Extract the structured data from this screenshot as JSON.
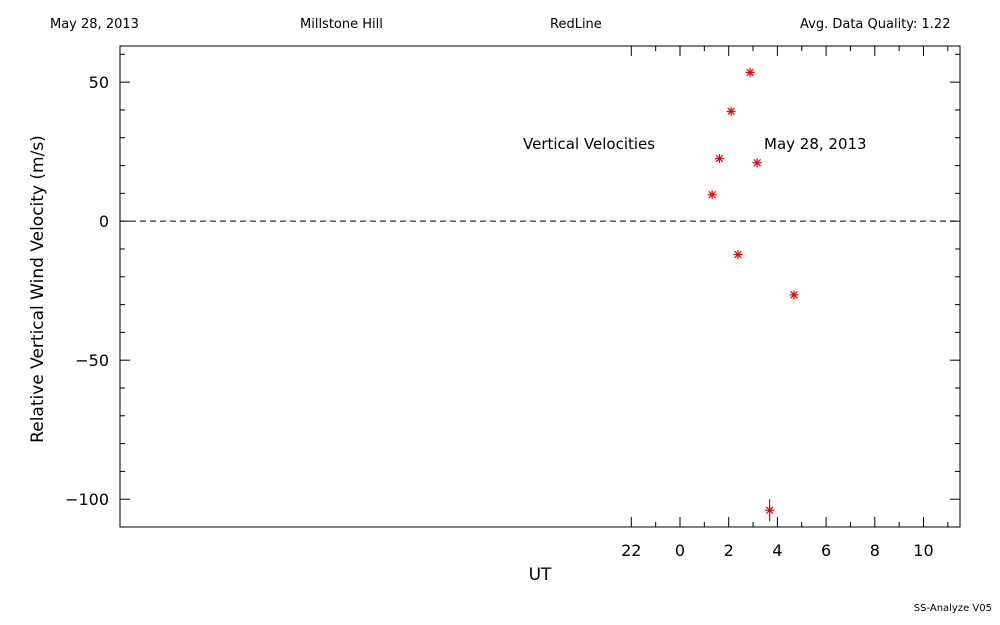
{
  "header": {
    "date": "May 28, 2013",
    "site": "Millstone Hill",
    "instrument": "RedLine",
    "quality": "Avg. Data Quality: 1.22"
  },
  "footer": {
    "version": "SS-Analyze V05"
  },
  "chart_data": {
    "type": "scatter",
    "title": "Vertical Velocities",
    "date_label": "May 28, 2013",
    "xlabel": "UT",
    "ylabel": "Relative Vertical Wind Velocity (m/s)",
    "xlim": [
      -23,
      11.5
    ],
    "ylim": [
      -110,
      63
    ],
    "x_major_ticks": [
      22,
      0,
      2,
      4,
      6,
      8,
      10
    ],
    "x_tick_labels": [
      "22",
      "0",
      "2",
      "4",
      "6",
      "8",
      "10"
    ],
    "y_major_ticks": [
      50,
      0,
      -50,
      -100
    ],
    "y_tick_labels": [
      "50",
      "0",
      "−50",
      "−100"
    ],
    "zero_line": 0,
    "marker_color": "#ee0000",
    "points": [
      {
        "x": 1.32,
        "y": 9.5
      },
      {
        "x": 1.62,
        "y": 22.5
      },
      {
        "x": 2.1,
        "y": 39.5
      },
      {
        "x": 2.38,
        "y": -12
      },
      {
        "x": 2.88,
        "y": 53.5
      },
      {
        "x": 3.17,
        "y": 21
      },
      {
        "x": 3.68,
        "y": -104,
        "err": 4
      },
      {
        "x": 4.68,
        "y": -26.5
      }
    ]
  }
}
